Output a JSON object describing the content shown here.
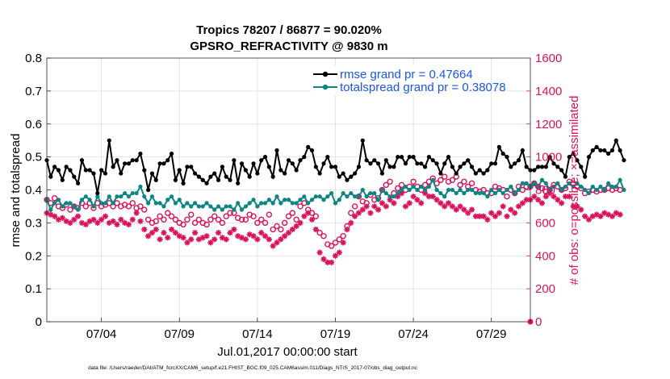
{
  "chart_data": {
    "type": "line",
    "title": "Tropics 78207 / 86877 = 90.020%",
    "subtitle": "GPSRO_REFRACTIVITY @ 9830 m",
    "xlabel": "Jul.01,2017 00:00:00 start",
    "ylabel_left": "rmse and totalspread",
    "ylabel_right": "# of obs: o=possible; ×=assimilated",
    "footer": "data file: /Users/raeder/DAI/ATM_forcXX/CAM6_setup/f.e21.FHIST_BGC.f09_025.CAM6assim.011/Diags_NTrS_2017-07/obs_diag_output.nc",
    "x_range": [
      0.5,
      31.5
    ],
    "ylim_left": [
      0,
      0.8
    ],
    "ylim_right": [
      0,
      1600
    ],
    "x_ticks": [
      {
        "value": 4,
        "label": "07/04"
      },
      {
        "value": 9,
        "label": "07/09"
      },
      {
        "value": 14,
        "label": "07/14"
      },
      {
        "value": 19,
        "label": "07/19"
      },
      {
        "value": 24,
        "label": "07/24"
      },
      {
        "value": 29,
        "label": "07/29"
      }
    ],
    "y_ticks_left": [
      "0",
      "0.1",
      "0.2",
      "0.3",
      "0.4",
      "0.5",
      "0.6",
      "0.7",
      "0.8"
    ],
    "y_ticks_right": [
      "0",
      "200",
      "400",
      "600",
      "800",
      "1000",
      "1200",
      "1400",
      "1600"
    ],
    "grid": true,
    "legend_position": "top-right",
    "legend": [
      "rmse grand pr = 0.47664",
      "totalspread grand pr = 0.38078"
    ],
    "colors": {
      "rmse": "#000000",
      "totalspread": "#0d8585",
      "obs": "#d9125b",
      "legend_text": "#1a56e8",
      "grid": "#dddddd"
    },
    "series": [
      {
        "name": "rmse",
        "axis": "left",
        "x_start": 0.5,
        "x_step": 0.25,
        "values": [
          0.49,
          0.44,
          0.47,
          0.46,
          0.43,
          0.47,
          0.46,
          0.44,
          0.42,
          0.49,
          0.46,
          0.46,
          0.45,
          0.39,
          0.46,
          0.45,
          0.55,
          0.47,
          0.49,
          0.45,
          0.48,
          0.48,
          0.49,
          0.49,
          0.51,
          0.46,
          0.4,
          0.45,
          0.43,
          0.48,
          0.48,
          0.49,
          0.51,
          0.43,
          0.46,
          0.42,
          0.47,
          0.47,
          0.45,
          0.44,
          0.43,
          0.42,
          0.44,
          0.45,
          0.43,
          0.47,
          0.44,
          0.43,
          0.49,
          0.42,
          0.48,
          0.46,
          0.44,
          0.48,
          0.45,
          0.49,
          0.5,
          0.47,
          0.44,
          0.52,
          0.46,
          0.45,
          0.49,
          0.48,
          0.46,
          0.49,
          0.5,
          0.53,
          0.52,
          0.47,
          0.45,
          0.48,
          0.5,
          0.47,
          0.47,
          0.44,
          0.45,
          0.43,
          0.44,
          0.45,
          0.47,
          0.55,
          0.49,
          0.48,
          0.49,
          0.48,
          0.45,
          0.49,
          0.47,
          0.47,
          0.5,
          0.5,
          0.48,
          0.5,
          0.5,
          0.48,
          0.48,
          0.47,
          0.5,
          0.49,
          0.48,
          0.45,
          0.48,
          0.5,
          0.47,
          0.45,
          0.47,
          0.48,
          0.49,
          0.47,
          0.45,
          0.46,
          0.45,
          0.46,
          0.48,
          0.48,
          0.53,
          0.51,
          0.5,
          0.47,
          0.48,
          0.49,
          0.52,
          0.47,
          0.46,
          0.46,
          0.47,
          0.47,
          0.47,
          0.5,
          0.48,
          0.47,
          0.46,
          0.44,
          0.5,
          0.51,
          0.49,
          0.47,
          0.44,
          0.5,
          0.52,
          0.53,
          0.52,
          0.52,
          0.51,
          0.52,
          0.55,
          0.52,
          0.49
        ]
      },
      {
        "name": "totalspread",
        "axis": "left",
        "x_start": 0.5,
        "x_step": 0.25,
        "values": [
          0.37,
          0.34,
          0.36,
          0.37,
          0.35,
          0.36,
          0.36,
          0.35,
          0.34,
          0.37,
          0.38,
          0.37,
          0.35,
          0.38,
          0.36,
          0.36,
          0.38,
          0.36,
          0.38,
          0.38,
          0.39,
          0.38,
          0.39,
          0.39,
          0.41,
          0.38,
          0.36,
          0.38,
          0.36,
          0.36,
          0.35,
          0.37,
          0.38,
          0.36,
          0.37,
          0.35,
          0.36,
          0.35,
          0.36,
          0.35,
          0.35,
          0.36,
          0.35,
          0.34,
          0.35,
          0.34,
          0.35,
          0.35,
          0.34,
          0.36,
          0.34,
          0.35,
          0.36,
          0.37,
          0.35,
          0.36,
          0.36,
          0.37,
          0.36,
          0.38,
          0.36,
          0.37,
          0.37,
          0.36,
          0.36,
          0.37,
          0.38,
          0.36,
          0.37,
          0.38,
          0.38,
          0.37,
          0.38,
          0.39,
          0.36,
          0.37,
          0.39,
          0.38,
          0.39,
          0.38,
          0.38,
          0.4,
          0.38,
          0.39,
          0.39,
          0.37,
          0.4,
          0.39,
          0.38,
          0.38,
          0.39,
          0.4,
          0.41,
          0.4,
          0.41,
          0.4,
          0.41,
          0.4,
          0.41,
          0.43,
          0.4,
          0.39,
          0.38,
          0.4,
          0.4,
          0.39,
          0.4,
          0.39,
          0.4,
          0.4,
          0.39,
          0.39,
          0.39,
          0.38,
          0.4,
          0.39,
          0.4,
          0.39,
          0.4,
          0.41,
          0.39,
          0.4,
          0.42,
          0.42,
          0.41,
          0.42,
          0.41,
          0.43,
          0.42,
          0.4,
          0.41,
          0.42,
          0.4,
          0.41,
          0.42,
          0.41,
          0.42,
          0.41,
          0.4,
          0.39,
          0.41,
          0.4,
          0.41,
          0.4,
          0.42,
          0.41,
          0.41,
          0.43,
          0.4
        ]
      },
      {
        "name": "possible",
        "axis": "right",
        "marker": "circle",
        "x_start": 0.5,
        "x_step": 0.25,
        "values": [
          740,
          720,
          750,
          700,
          690,
          710,
          680,
          700,
          690,
          720,
          700,
          720,
          690,
          720,
          700,
          710,
          720,
          700,
          720,
          700,
          710,
          700,
          720,
          690,
          700,
          680,
          620,
          600,
          610,
          640,
          620,
          660,
          640,
          620,
          600,
          590,
          620,
          650,
          600,
          620,
          600,
          590,
          620,
          640,
          620,
          600,
          640,
          660,
          660,
          630,
          620,
          620,
          650,
          640,
          600,
          620,
          600,
          650,
          560,
          580,
          560,
          600,
          640,
          660,
          620,
          700,
          720,
          680,
          660,
          640,
          540,
          520,
          470,
          460,
          480,
          500,
          520,
          580,
          660,
          700,
          760,
          730,
          720,
          770,
          740,
          750,
          800,
          830,
          850,
          780,
          810,
          830,
          800,
          820,
          850,
          820,
          800,
          830,
          850,
          870,
          840,
          860,
          880,
          850,
          860,
          880,
          830,
          850,
          820,
          840,
          800,
          790,
          800,
          780,
          780,
          820,
          810,
          800,
          760,
          800,
          780,
          820,
          800,
          820,
          820,
          840,
          820,
          810,
          790,
          800,
          830,
          820,
          800,
          810,
          850,
          840,
          820,
          810,
          780,
          790,
          800,
          790,
          800,
          800,
          810,
          800,
          810,
          800
        ]
      },
      {
        "name": "assimilated",
        "axis": "right",
        "marker": "star",
        "x_start": 0.5,
        "x_step": 0.25,
        "values": [
          660,
          650,
          640,
          620,
          630,
          610,
          600,
          620,
          640,
          600,
          590,
          610,
          620,
          600,
          620,
          640,
          600,
          610,
          590,
          620,
          600,
          590,
          620,
          660,
          610,
          560,
          520,
          540,
          560,
          500,
          540,
          510,
          560,
          540,
          520,
          510,
          480,
          500,
          540,
          500,
          510,
          520,
          480,
          500,
          540,
          510,
          500,
          540,
          560,
          520,
          510,
          500,
          530,
          520,
          500,
          540,
          520,
          500,
          460,
          480,
          500,
          520,
          540,
          560,
          580,
          600,
          640,
          660,
          620,
          560,
          420,
          380,
          360,
          360,
          400,
          420,
          480,
          560,
          600,
          640,
          660,
          680,
          700,
          660,
          700,
          680,
          720,
          700,
          740,
          720,
          760,
          780,
          700,
          720,
          760,
          740,
          720,
          780,
          760,
          760,
          740,
          720,
          700,
          720,
          700,
          680,
          700,
          680,
          660,
          680,
          640,
          640,
          640,
          620,
          660,
          640,
          660,
          700,
          640,
          680,
          660,
          700,
          720,
          740,
          740,
          760,
          740,
          720,
          760,
          780,
          760,
          740,
          720,
          760,
          760,
          700,
          700,
          680,
          640,
          620,
          640,
          650,
          640,
          660,
          650,
          640,
          660,
          650
        ]
      }
    ]
  }
}
